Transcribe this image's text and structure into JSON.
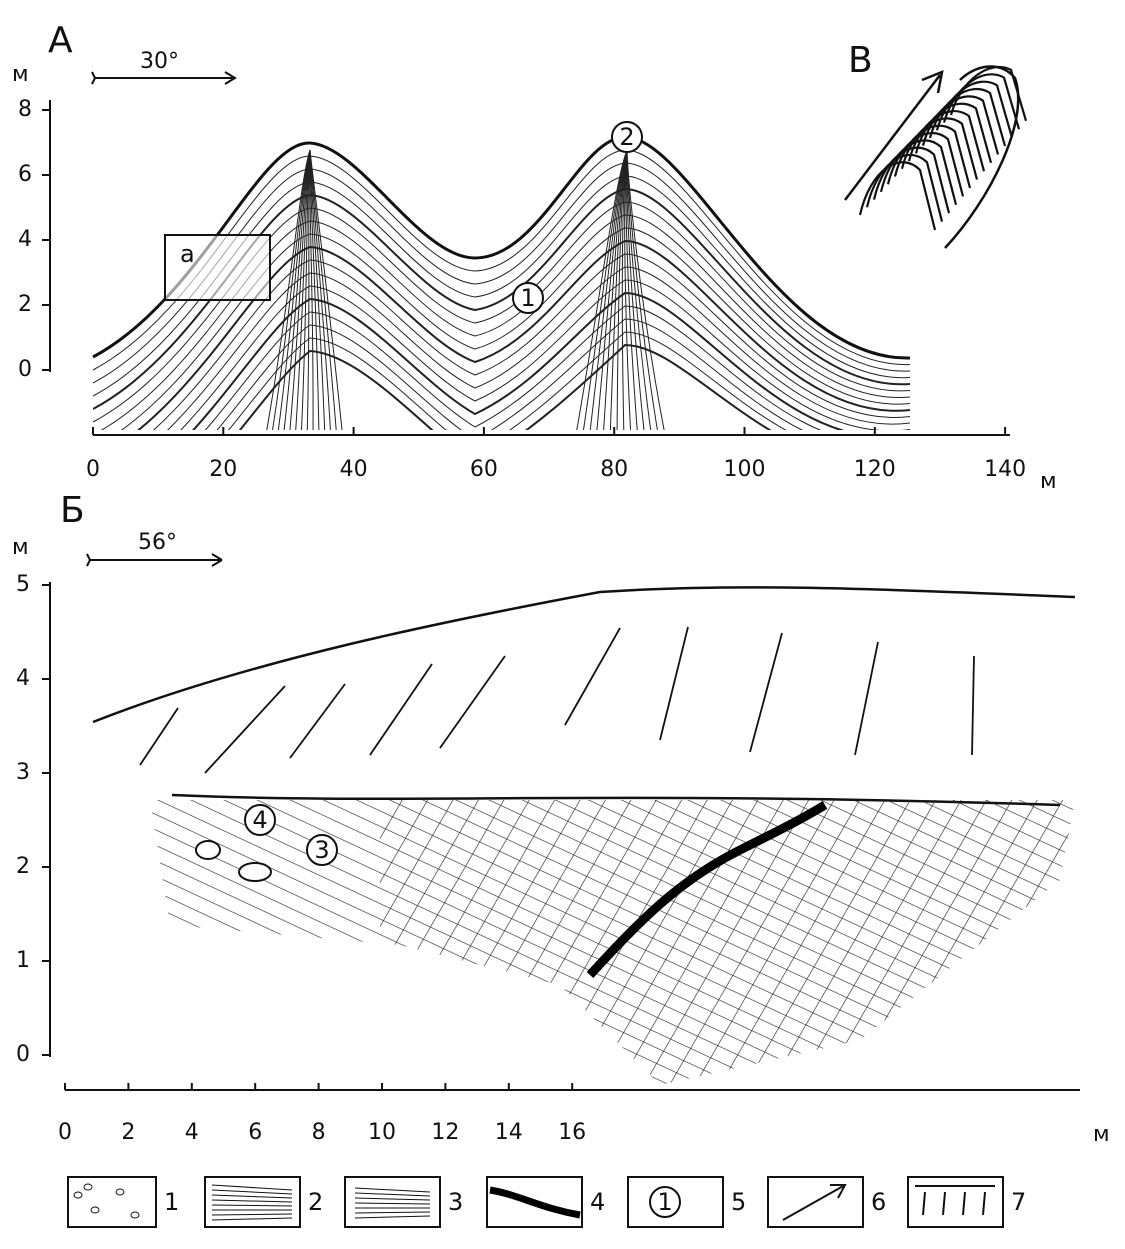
{
  "panel_a": {
    "label": "А",
    "unit_y": "м",
    "azimuth": "30°",
    "yticks": [
      "0",
      "2",
      "4",
      "6",
      "8"
    ],
    "xticks": [
      "0",
      "20",
      "40",
      "60",
      "80",
      "100",
      "120",
      "140"
    ],
    "unit_x": "м",
    "inset_label": "а",
    "markers": [
      "1",
      "2"
    ]
  },
  "panel_c": {
    "label": "В"
  },
  "panel_b": {
    "label": "Б",
    "unit_y": "м",
    "azimuth": "56°",
    "yticks": [
      "0",
      "1",
      "2",
      "3",
      "4",
      "5"
    ],
    "xticks": [
      "0",
      "2",
      "4",
      "6",
      "8",
      "10",
      "12",
      "14",
      "16"
    ],
    "unit_x": "м",
    "markers": [
      "3",
      "4"
    ]
  },
  "legend": {
    "items": [
      "1",
      "2",
      "3",
      "4",
      "5",
      "6",
      "7"
    ],
    "sample_5": "1"
  }
}
